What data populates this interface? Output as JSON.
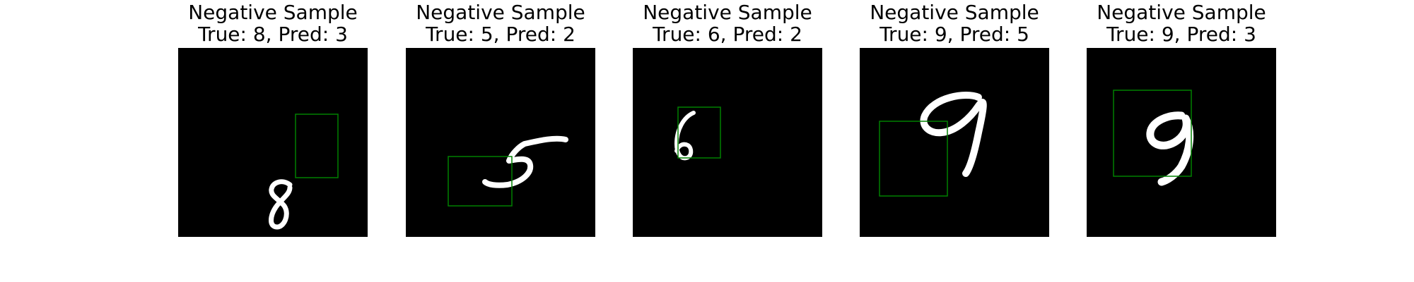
{
  "figure": {
    "panels": [
      {
        "title": "Negative Sample",
        "subtitle": "True: 8, Pred: 3",
        "true_label": 8,
        "pred_label": 3,
        "digit_glyph": "8"
      },
      {
        "title": "Negative Sample",
        "subtitle": "True: 5, Pred: 2",
        "true_label": 5,
        "pred_label": 2,
        "digit_glyph": "5"
      },
      {
        "title": "Negative Sample",
        "subtitle": "True: 6, Pred: 2",
        "true_label": 6,
        "pred_label": 2,
        "digit_glyph": "6"
      },
      {
        "title": "Negative Sample",
        "subtitle": "True: 9, Pred: 5",
        "true_label": 9,
        "pred_label": 5,
        "digit_glyph": "9"
      },
      {
        "title": "Negative Sample",
        "subtitle": "True: 9, Pred: 3",
        "true_label": 9,
        "pred_label": 3,
        "digit_glyph": "9"
      }
    ],
    "colors": {
      "image_background": "#000000",
      "digit_stroke": "#ffffff",
      "bounding_box": "#008000"
    }
  }
}
